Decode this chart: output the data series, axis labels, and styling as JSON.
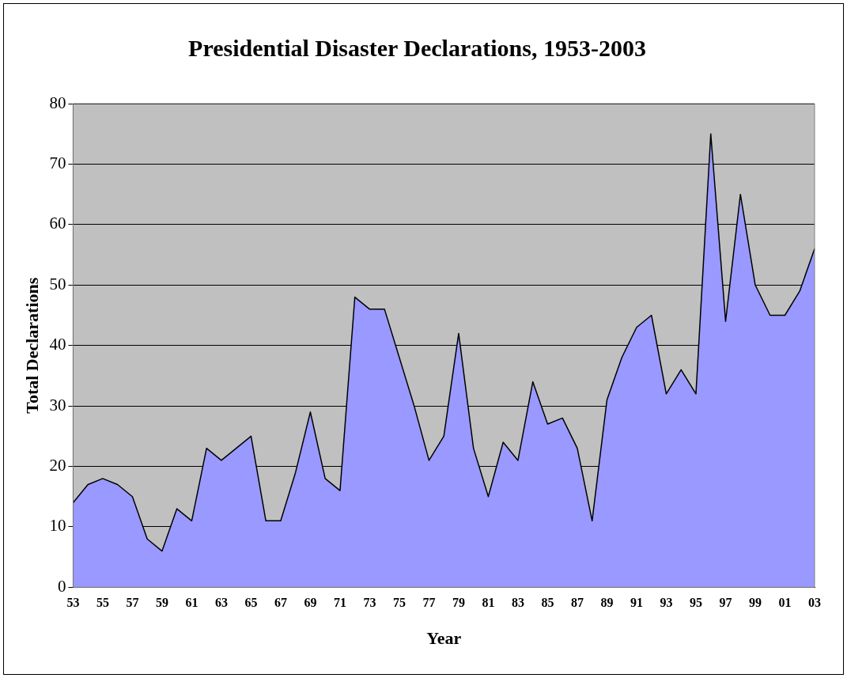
{
  "chart_data": {
    "type": "area",
    "title": "Presidential Disaster Declarations, 1953-2003",
    "xlabel": "Year",
    "ylabel": "Total Declarations",
    "categories": [
      "53",
      null,
      "55",
      null,
      "57",
      null,
      "59",
      null,
      "61",
      null,
      "63",
      null,
      "65",
      null,
      "67",
      null,
      "69",
      null,
      "71",
      null,
      "73",
      null,
      "75",
      null,
      "77",
      null,
      "79",
      null,
      "81",
      null,
      "83",
      null,
      "85",
      null,
      "87",
      null,
      "89",
      null,
      "91",
      null,
      "93",
      null,
      "95",
      null,
      "97",
      null,
      "99",
      null,
      "01",
      null,
      "03"
    ],
    "series": [
      {
        "color": "#9999ff",
        "values": [
          14,
          17,
          18,
          17,
          15,
          8,
          6,
          13,
          11,
          23,
          21,
          23,
          25,
          11,
          11,
          19,
          29,
          18,
          16,
          48,
          46,
          46,
          38,
          30,
          21,
          25,
          42,
          23,
          15,
          24,
          21,
          34,
          27,
          28,
          23,
          11,
          31,
          38,
          43,
          45,
          32,
          36,
          32,
          75,
          44,
          65,
          50,
          45,
          45,
          49,
          56
        ]
      }
    ],
    "ylim": [
      0,
      80
    ],
    "yticks": [
      0,
      10,
      20,
      30,
      40,
      50,
      60,
      70,
      80
    ],
    "grid": "y",
    "legend": false
  }
}
